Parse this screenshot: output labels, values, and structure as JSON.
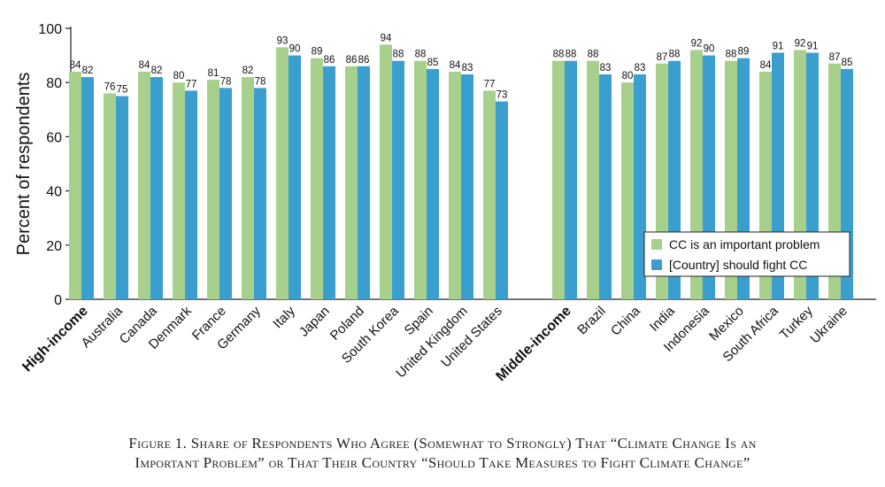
{
  "chart_data": {
    "type": "bar",
    "ylabel": "Percent of respondents",
    "ylim": [
      0,
      100
    ],
    "yticks": [
      0,
      20,
      40,
      60,
      80,
      100
    ],
    "grid": false,
    "legend_position": "bottom-right",
    "categories": [
      {
        "label": "High-income",
        "is_group_header": true
      },
      {
        "label": "Australia",
        "values": [
          76,
          75
        ]
      },
      {
        "label": "Canada",
        "values": [
          84,
          82
        ]
      },
      {
        "label": "Denmark",
        "values": [
          80,
          77
        ]
      },
      {
        "label": "France",
        "values": [
          81,
          78
        ]
      },
      {
        "label": "Germany",
        "values": [
          82,
          78
        ]
      },
      {
        "label": "Italy",
        "values": [
          93,
          90
        ]
      },
      {
        "label": "Japan",
        "values": [
          89,
          86
        ]
      },
      {
        "label": "Poland",
        "values": [
          86,
          86
        ]
      },
      {
        "label": "South Korea",
        "values": [
          94,
          88
        ]
      },
      {
        "label": "Spain",
        "values": [
          88,
          85
        ]
      },
      {
        "label": "United Kingdom",
        "values": [
          84,
          83
        ]
      },
      {
        "label": "United States",
        "values": [
          77,
          73
        ]
      },
      {
        "label": "Middle-income",
        "is_group_header": true
      },
      {
        "label": "Brazil",
        "values": [
          88,
          83
        ]
      },
      {
        "label": "China",
        "values": [
          80,
          83
        ]
      },
      {
        "label": "India",
        "values": [
          87,
          88
        ]
      },
      {
        "label": "Indonesia",
        "values": [
          92,
          90
        ]
      },
      {
        "label": "Mexico",
        "values": [
          88,
          89
        ]
      },
      {
        "label": "South Africa",
        "values": [
          84,
          91
        ]
      },
      {
        "label": "Turkey",
        "values": [
          92,
          91
        ]
      },
      {
        "label": "Ukraine",
        "values": [
          87,
          85
        ]
      }
    ],
    "high_income_first_bars": [
      84,
      82
    ],
    "middle_income_first_bars": [
      88,
      88
    ],
    "series": [
      {
        "name": "CC is an important problem",
        "color": "#a8d08d"
      },
      {
        "name": "[Country] should fight CC",
        "color": "#3a9ecf"
      }
    ]
  },
  "caption": {
    "line1": "Figure 1. Share of Respondents Who Agree (Somewhat to Strongly) That “Climate Change Is an",
    "line2": "Important Problem” or That Their Country “Should Take Measures to Fight Climate Change”"
  }
}
